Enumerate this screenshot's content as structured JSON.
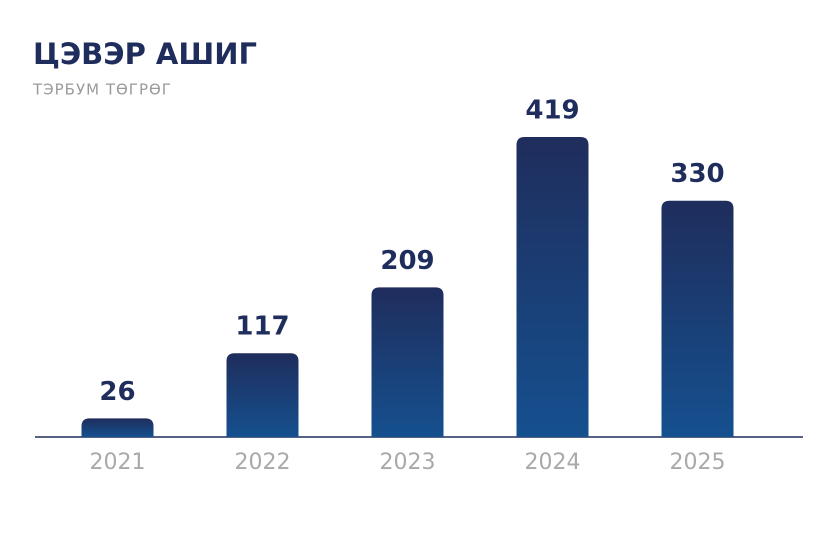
{
  "chart_data": {
    "type": "bar",
    "title": "ЦЭВЭР АШИГ",
    "subtitle": "ТЭРБУМ ТӨГРӨГ",
    "categories": [
      "2021",
      "2022",
      "2023",
      "2024",
      "2025"
    ],
    "values": [
      26,
      117,
      209,
      419,
      330
    ],
    "color": "#1f2d5c"
  }
}
